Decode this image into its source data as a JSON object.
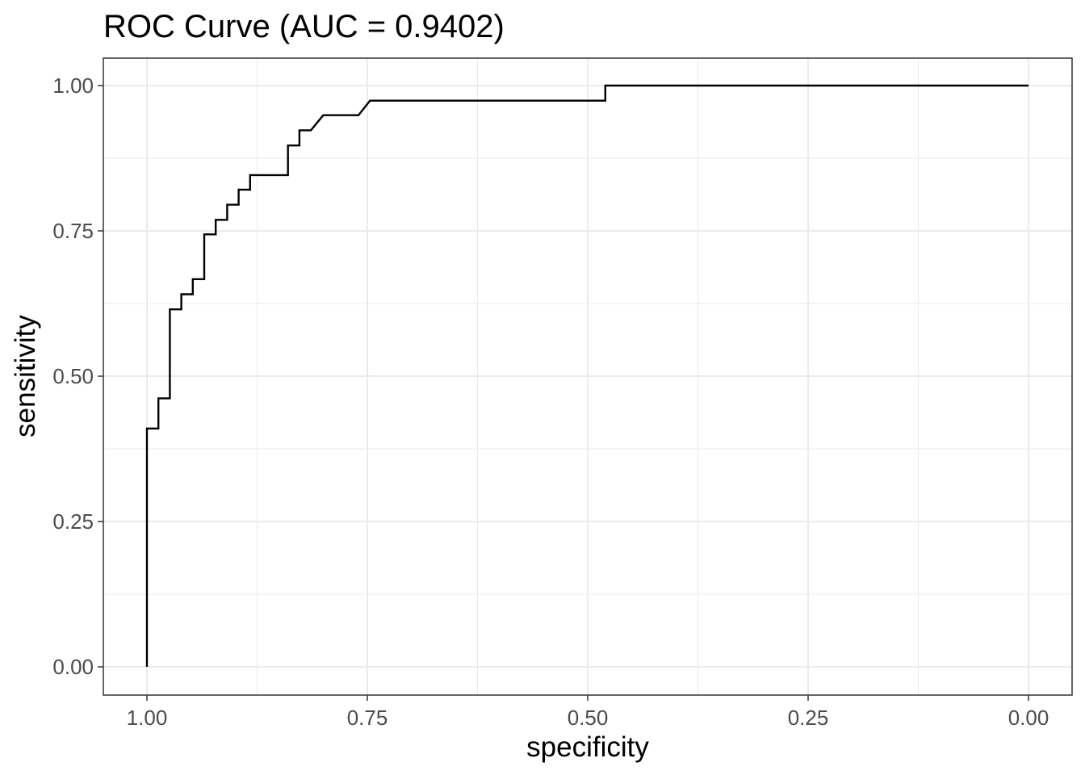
{
  "chart_data": {
    "type": "line",
    "title": "ROC Curve (AUC = 0.9402)",
    "xlabel": "specificity",
    "ylabel": "sensitivity",
    "x_reversed": true,
    "xlim": [
      1.0,
      0.0
    ],
    "ylim": [
      0.0,
      1.0
    ],
    "x_ticks": [
      1.0,
      0.75,
      0.5,
      0.25,
      0.0
    ],
    "x_tick_labels": [
      "1.00",
      "0.75",
      "0.50",
      "0.25",
      "0.00"
    ],
    "y_ticks": [
      0.0,
      0.25,
      0.5,
      0.75,
      1.0
    ],
    "y_tick_labels": [
      "0.00",
      "0.25",
      "0.50",
      "0.75",
      "1.00"
    ],
    "grid": true,
    "series": [
      {
        "color": "#000000",
        "step": true,
        "x": [
          1.0,
          1.0,
          0.987,
          0.987,
          0.974,
          0.974,
          0.961,
          0.961,
          0.948,
          0.948,
          0.935,
          0.935,
          0.922,
          0.922,
          0.909,
          0.909,
          0.896,
          0.896,
          0.883,
          0.883,
          0.84,
          0.84,
          0.827,
          0.827,
          0.814,
          0.8,
          0.76,
          0.747,
          0.48,
          0.48,
          0.0
        ],
        "y": [
          0.0,
          0.41,
          0.41,
          0.462,
          0.462,
          0.615,
          0.615,
          0.641,
          0.641,
          0.667,
          0.667,
          0.744,
          0.744,
          0.769,
          0.769,
          0.795,
          0.795,
          0.821,
          0.821,
          0.846,
          0.846,
          0.897,
          0.897,
          0.923,
          0.923,
          0.949,
          0.949,
          0.974,
          0.974,
          1.0,
          1.0
        ]
      }
    ]
  }
}
